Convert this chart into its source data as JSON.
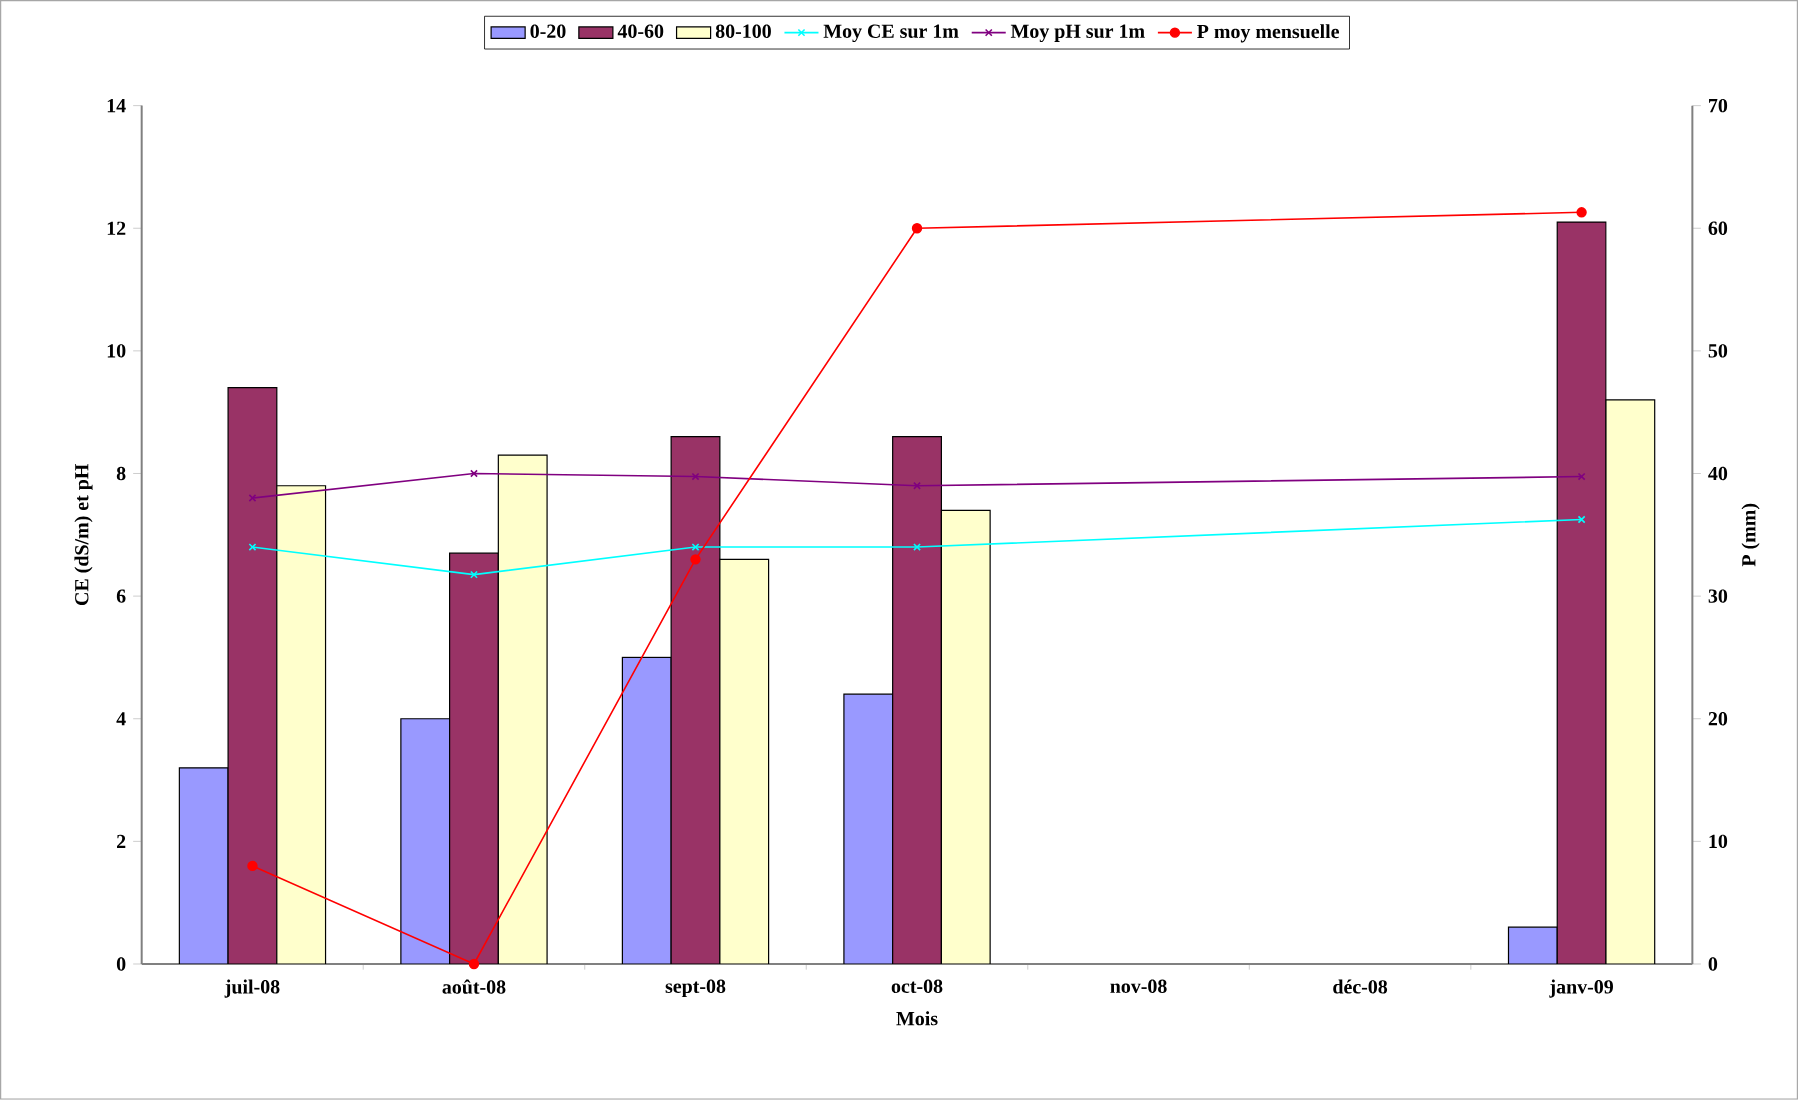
{
  "chart_data": {
    "type": "bar",
    "categories": [
      "juil-08",
      "août-08",
      "sept-08",
      "oct-08",
      "nov-08",
      "déc-08",
      "janv-09"
    ],
    "xlabel": "Mois",
    "ylabel": "CE (dS/m) et pH",
    "y2label": "P (mm)",
    "ylim": [
      0,
      14
    ],
    "yticks": [
      0,
      2,
      4,
      6,
      8,
      10,
      12,
      14
    ],
    "y2lim": [
      0,
      70
    ],
    "y2ticks": [
      0,
      10,
      20,
      30,
      40,
      50,
      60,
      70
    ],
    "legend": "top",
    "series": [
      {
        "name": "0-20",
        "color": "#9999ff",
        "values": [
          3.2,
          4.0,
          5.0,
          4.4,
          null,
          null,
          0.6
        ]
      },
      {
        "name": "40-60",
        "color": "#993366",
        "values": [
          9.4,
          6.7,
          8.6,
          8.6,
          null,
          null,
          12.1
        ]
      },
      {
        "name": "80-100",
        "color": "#ffffcc",
        "values": [
          7.8,
          8.3,
          6.6,
          7.4,
          null,
          null,
          9.2
        ]
      },
      {
        "name": "Moy CE sur 1m",
        "type": "line",
        "color": "#00ffff",
        "marker": "cross",
        "values": [
          6.8,
          6.35,
          6.8,
          6.8,
          null,
          null,
          7.25
        ]
      },
      {
        "name": "Moy pH sur 1m",
        "type": "line",
        "color": "#800080",
        "marker": "cross",
        "values": [
          7.6,
          8.0,
          7.95,
          7.8,
          null,
          null,
          7.95
        ]
      },
      {
        "name": "P moy mensuelle",
        "type": "line",
        "axis": "y2",
        "color": "#ff0000",
        "marker": "circle",
        "values": [
          8,
          0,
          33,
          60,
          null,
          null,
          61.3
        ]
      }
    ]
  }
}
